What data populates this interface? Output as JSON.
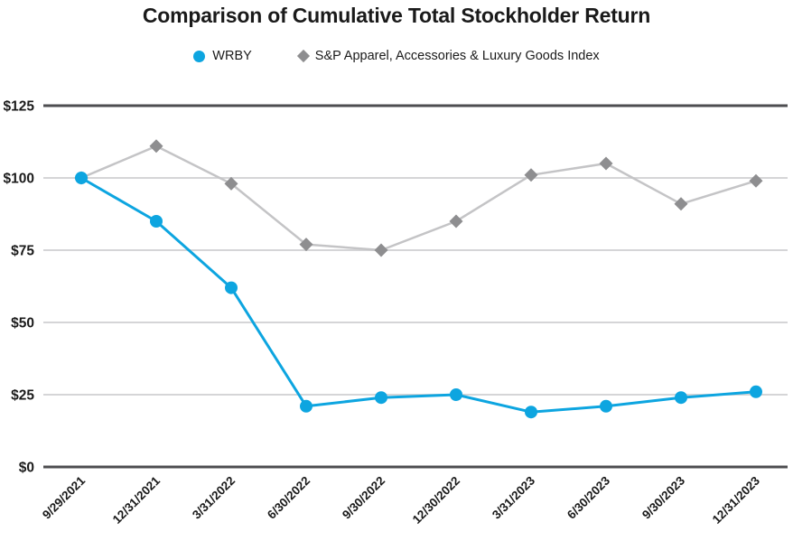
{
  "title": "Comparison of Cumulative Total Stockholder Return",
  "colors": {
    "wrby_blue": "#0da5e0",
    "sp_marker_gray": "#8e8e90",
    "sp_line_gray": "#c4c4c6",
    "grid_light": "#d5d5d7",
    "grid_dark": "#4d4d50",
    "text": "#1a1a1a"
  },
  "chart_data": {
    "type": "line",
    "title": "Comparison of Cumulative Total Stockholder Return",
    "categories": [
      "9/29/2021",
      "12/31/2021",
      "3/31/2022",
      "6/30/2022",
      "9/30/2022",
      "12/30/2022",
      "3/31/2023",
      "6/30/2023",
      "9/30/2023",
      "12/31/2023"
    ],
    "series": [
      {
        "name": "WRBY",
        "marker": "circle",
        "marker_color": "#0da5e0",
        "line_color": "#0da5e0",
        "values": [
          100,
          85,
          62,
          21,
          24,
          25,
          19,
          21,
          24,
          26
        ]
      },
      {
        "name": "S&P Apparel, Accessories & Luxury Goods Index",
        "marker": "diamond",
        "marker_color": "#8e8e90",
        "line_color": "#c4c4c6",
        "values": [
          100,
          111,
          98,
          77,
          75,
          85,
          101,
          105,
          91,
          99
        ]
      }
    ],
    "xlabel": "",
    "ylabel": "",
    "ylim": [
      0,
      125
    ],
    "ytick_step": 25,
    "ytick_labels": [
      "$0",
      "$25",
      "$50",
      "$75",
      "$100",
      "$125"
    ],
    "grid": true,
    "legend_position": "top"
  }
}
